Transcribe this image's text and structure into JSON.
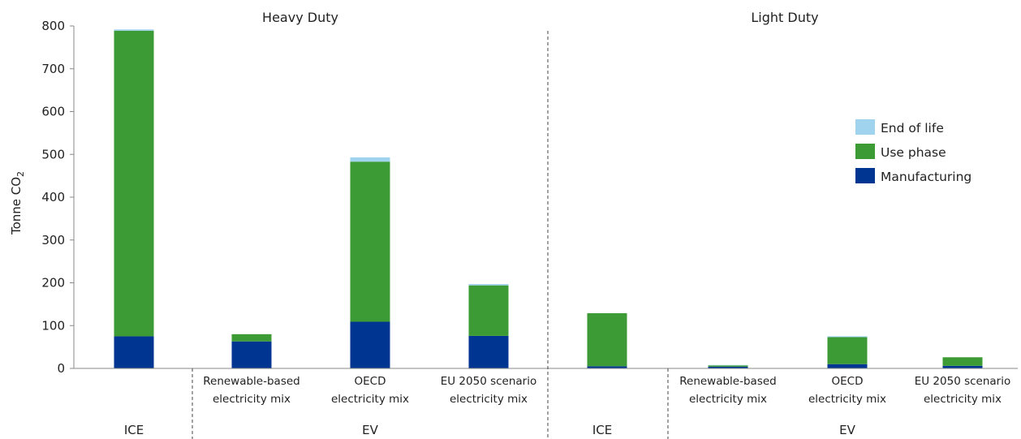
{
  "chart_data": {
    "type": "bar",
    "stacked": true,
    "ylabel": "Tonne CO",
    "ylabel_subscript": "2",
    "ylim": [
      0,
      800
    ],
    "yticks": [
      0,
      100,
      200,
      300,
      400,
      500,
      600,
      700,
      800
    ],
    "grid": false,
    "legend_position": "right",
    "panels": [
      {
        "title": "Heavy Duty",
        "categories": [
          {
            "line1": "",
            "line2": "",
            "group": "ICE"
          },
          {
            "line1": "Renewable-based",
            "line2": "electricity mix",
            "group": "EV"
          },
          {
            "line1": "OECD",
            "line2": "electricity mix",
            "group": "EV"
          },
          {
            "line1": "EU 2050 scenario",
            "line2": "electricity mix",
            "group": "EV"
          }
        ],
        "groups": [
          "ICE",
          "EV"
        ]
      },
      {
        "title": "Light Duty",
        "categories": [
          {
            "line1": "",
            "line2": "",
            "group": "ICE"
          },
          {
            "line1": "Renewable-based",
            "line2": "electricity mix",
            "group": "EV"
          },
          {
            "line1": "OECD",
            "line2": "electricity mix",
            "group": "EV"
          },
          {
            "line1": "EU 2050 scenario",
            "line2": "electricity mix",
            "group": "EV"
          }
        ],
        "groups": [
          "ICE",
          "EV"
        ]
      }
    ],
    "series": [
      {
        "name": "Manufacturing",
        "color": "#003591",
        "values": [
          75,
          63,
          109,
          76,
          5,
          4,
          10,
          6
        ]
      },
      {
        "name": "Use phase",
        "color": "#3d9b35",
        "values": [
          714,
          17,
          374,
          118,
          124,
          3,
          63,
          20
        ]
      },
      {
        "name": "End of life",
        "color": "#9fd3ee",
        "values": [
          3,
          0,
          10,
          3,
          0,
          1,
          2,
          0
        ]
      }
    ],
    "legend_order": [
      "End of life",
      "Use phase",
      "Manufacturing"
    ]
  }
}
